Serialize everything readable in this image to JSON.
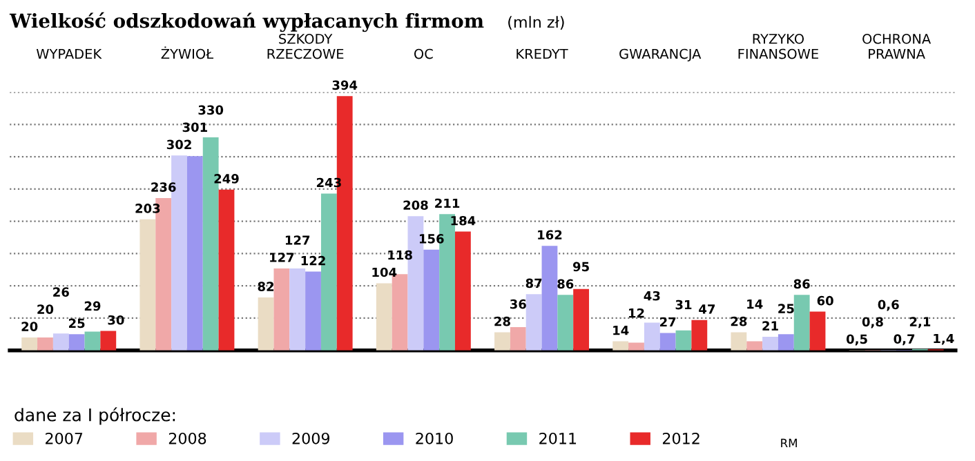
{
  "chart_data": {
    "type": "bar",
    "title": "Wielkość odszkodowań wypłacanych firmom",
    "subtitle": "(mln zł)",
    "categories": [
      "WYPADEK",
      "ŻYWIOŁ",
      "SZKODY\nRZECZOWE",
      "OC",
      "KREDYT",
      "GWARANCJA",
      "RYZYKO\nFINANSOWE",
      "OCHRONA\nPRAWNA"
    ],
    "series": [
      {
        "name": "2007",
        "color": "#eadcc4",
        "values": [
          20,
          203,
          82,
          104,
          28,
          14,
          28,
          0.5
        ],
        "value_labels": [
          "20",
          "203",
          "82",
          "104",
          "28",
          "14",
          "28",
          "0,5"
        ]
      },
      {
        "name": "2008",
        "color": "#f0a8a8",
        "values": [
          20,
          236,
          127,
          118,
          36,
          12,
          14,
          0.8
        ],
        "value_labels": [
          "20",
          "236",
          "127",
          "118",
          "36",
          "12",
          "14",
          "0,8"
        ]
      },
      {
        "name": "2009",
        "color": "#cccbf8",
        "values": [
          26,
          302,
          127,
          208,
          87,
          43,
          21,
          0.6
        ],
        "value_labels": [
          "26",
          "302",
          "127",
          "208",
          "87",
          "43",
          "21",
          "0,6"
        ]
      },
      {
        "name": "2010",
        "color": "#9b96f0",
        "values": [
          25,
          301,
          122,
          156,
          162,
          27,
          25,
          0.7
        ],
        "value_labels": [
          "25",
          "301",
          "122",
          "156",
          "162",
          "27",
          "25",
          "0,7"
        ]
      },
      {
        "name": "2011",
        "color": "#78c9b0",
        "values": [
          29,
          330,
          243,
          211,
          86,
          31,
          86,
          2.1
        ],
        "value_labels": [
          "29",
          "330",
          "243",
          "211",
          "86",
          "31",
          "86",
          "2,1"
        ]
      },
      {
        "name": "2012",
        "color": "#e82a2a",
        "values": [
          30,
          249,
          394,
          184,
          95,
          47,
          60,
          1.4
        ],
        "value_labels": [
          "30",
          "249",
          "394",
          "184",
          "95",
          "47",
          "60",
          "1,4"
        ]
      }
    ],
    "ylim": [
      0,
      400
    ],
    "yticks": [
      {
        "value": 50,
        "label": null
      },
      {
        "value": 100,
        "label": null
      },
      {
        "value": 150,
        "label": null
      },
      {
        "value": 200,
        "label": null
      },
      {
        "value": 250,
        "label": null
      },
      {
        "value": 300,
        "label": null
      },
      {
        "value": 350,
        "label": null
      },
      {
        "value": 400,
        "label": null
      }
    ],
    "grid": "y",
    "legend": "bottom left",
    "legend_title": "dane za I półrocze:",
    "tick_labels": "x",
    "annotations": [
      "RM"
    ]
  }
}
